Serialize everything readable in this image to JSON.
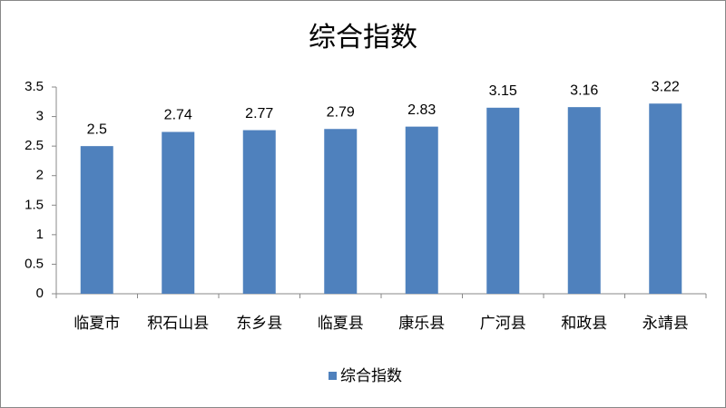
{
  "chart_data": {
    "type": "bar",
    "title": "综合指数",
    "categories": [
      "临夏市",
      "积石山县",
      "东乡县",
      "临夏县",
      "康乐县",
      "广河县",
      "和政县",
      "永靖县"
    ],
    "series": [
      {
        "name": "综合指数",
        "color": "#4f81bd",
        "values": [
          2.5,
          2.74,
          2.77,
          2.79,
          2.83,
          3.15,
          3.16,
          3.22
        ]
      }
    ],
    "ylim": [
      0,
      3.5
    ],
    "yticks": [
      0,
      0.5,
      1,
      1.5,
      2,
      2.5,
      3,
      3.5
    ],
    "grid": false,
    "legend": "bottom"
  }
}
